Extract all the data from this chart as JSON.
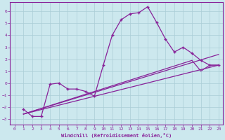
{
  "xlabel": "Windchill (Refroidissement éolien,°C)",
  "xlim": [
    -0.5,
    23.5
  ],
  "ylim": [
    -3.5,
    6.8
  ],
  "xticks": [
    0,
    1,
    2,
    3,
    4,
    5,
    6,
    7,
    8,
    9,
    10,
    11,
    12,
    13,
    14,
    15,
    16,
    17,
    18,
    19,
    20,
    21,
    22,
    23
  ],
  "yticks": [
    -3,
    -2,
    -1,
    0,
    1,
    2,
    3,
    4,
    5,
    6
  ],
  "bg_color": "#cce8ee",
  "grid_color": "#aacdd6",
  "line_color": "#882299",
  "line1_x": [
    1,
    2,
    3,
    4,
    5,
    6,
    7,
    8,
    9,
    10,
    11,
    12,
    13,
    14,
    15,
    16,
    17,
    18,
    19,
    20,
    21,
    22,
    23
  ],
  "line1_y": [
    -2.2,
    -2.8,
    -2.8,
    -0.1,
    0.0,
    -0.5,
    -0.5,
    -0.7,
    -1.1,
    1.5,
    4.0,
    5.3,
    5.8,
    5.9,
    6.4,
    5.1,
    3.7,
    2.6,
    3.0,
    2.5,
    1.9,
    1.5,
    1.5
  ],
  "line2_x": [
    1,
    23
  ],
  "line2_y": [
    -2.6,
    1.5
  ],
  "line3_x": [
    1,
    23
  ],
  "line3_y": [
    -2.6,
    2.4
  ],
  "line4_x": [
    1,
    20,
    21,
    22,
    23
  ],
  "line4_y": [
    -2.6,
    1.9,
    1.0,
    1.5,
    1.5
  ]
}
